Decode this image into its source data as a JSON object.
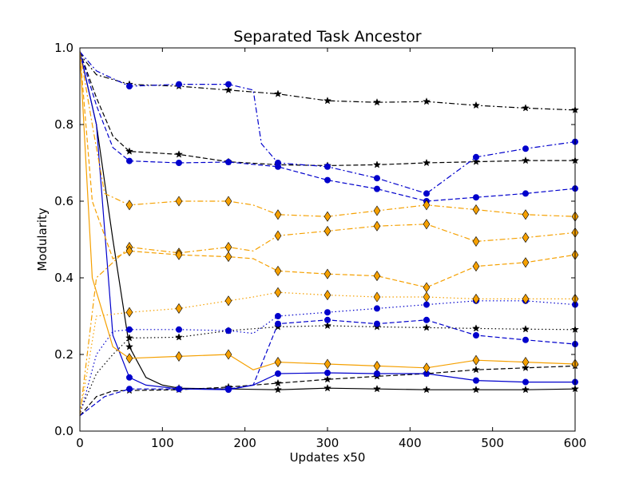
{
  "chart_data": {
    "type": "line",
    "title": "Separated Task Ancestor",
    "xlabel": "Updates x50",
    "ylabel": "Modularity",
    "xlim": [
      0,
      600
    ],
    "ylim": [
      0.0,
      1.0
    ],
    "x_ticks": [
      0,
      100,
      200,
      300,
      400,
      500,
      600
    ],
    "y_ticks": [
      0.0,
      0.2,
      0.4,
      0.6,
      0.8,
      1.0
    ],
    "x_tick_labels": [
      "0",
      "100",
      "200",
      "300",
      "400",
      "500",
      "600"
    ],
    "y_tick_labels": [
      "0.0",
      "0.2",
      "0.4",
      "0.6",
      "0.8",
      "1.0"
    ],
    "grid": false,
    "colors": {
      "black": "#000000",
      "blue": "#0000cc",
      "orange": "#f5a000"
    },
    "series": [
      {
        "color": "black",
        "style": "dashdot",
        "marker": "star",
        "points": [
          [
            0,
            0.99
          ],
          [
            5,
            0.97
          ],
          [
            20,
            0.93
          ],
          [
            60,
            0.905
          ],
          [
            120,
            0.9
          ],
          [
            180,
            0.89
          ],
          [
            240,
            0.88
          ],
          [
            300,
            0.862
          ],
          [
            360,
            0.858
          ],
          [
            420,
            0.86
          ],
          [
            480,
            0.85
          ],
          [
            540,
            0.843
          ],
          [
            600,
            0.838
          ]
        ]
      },
      {
        "color": "black",
        "style": "dashed",
        "marker": "star",
        "points": [
          [
            0,
            0.99
          ],
          [
            20,
            0.87
          ],
          [
            40,
            0.77
          ],
          [
            60,
            0.73
          ],
          [
            120,
            0.722
          ],
          [
            180,
            0.703
          ],
          [
            240,
            0.695
          ],
          [
            300,
            0.693
          ],
          [
            360,
            0.695
          ],
          [
            420,
            0.7
          ],
          [
            480,
            0.703
          ],
          [
            540,
            0.706
          ],
          [
            600,
            0.706
          ]
        ]
      },
      {
        "color": "black",
        "style": "dotted",
        "marker": "star",
        "points": [
          [
            0,
            0.05
          ],
          [
            20,
            0.15
          ],
          [
            40,
            0.2
          ],
          [
            60,
            0.243
          ],
          [
            120,
            0.245
          ],
          [
            180,
            0.262
          ],
          [
            240,
            0.272
          ],
          [
            300,
            0.275
          ],
          [
            360,
            0.272
          ],
          [
            420,
            0.27
          ],
          [
            480,
            0.268
          ],
          [
            540,
            0.266
          ],
          [
            600,
            0.265
          ]
        ]
      },
      {
        "color": "black",
        "style": "dashed",
        "marker": "star",
        "points": [
          [
            0,
            0.04
          ],
          [
            20,
            0.09
          ],
          [
            40,
            0.105
          ],
          [
            60,
            0.106
          ],
          [
            120,
            0.108
          ],
          [
            180,
            0.115
          ],
          [
            240,
            0.125
          ],
          [
            300,
            0.135
          ],
          [
            360,
            0.143
          ],
          [
            420,
            0.15
          ],
          [
            480,
            0.16
          ],
          [
            540,
            0.165
          ],
          [
            600,
            0.17
          ]
        ]
      },
      {
        "color": "black",
        "style": "solid",
        "marker": "star",
        "points": [
          [
            0,
            0.99
          ],
          [
            20,
            0.8
          ],
          [
            40,
            0.5
          ],
          [
            60,
            0.22
          ],
          [
            80,
            0.14
          ],
          [
            100,
            0.12
          ],
          [
            120,
            0.112
          ],
          [
            180,
            0.11
          ],
          [
            240,
            0.108
          ],
          [
            300,
            0.112
          ],
          [
            360,
            0.11
          ],
          [
            420,
            0.108
          ],
          [
            480,
            0.108
          ],
          [
            540,
            0.108
          ],
          [
            600,
            0.11
          ]
        ]
      },
      {
        "color": "blue",
        "style": "dashdot",
        "marker": "circle",
        "points": [
          [
            0,
            0.99
          ],
          [
            20,
            0.94
          ],
          [
            60,
            0.9
          ],
          [
            120,
            0.905
          ],
          [
            180,
            0.905
          ],
          [
            210,
            0.89
          ],
          [
            220,
            0.75
          ],
          [
            240,
            0.7
          ],
          [
            300,
            0.69
          ],
          [
            360,
            0.66
          ],
          [
            420,
            0.62
          ],
          [
            480,
            0.715
          ],
          [
            540,
            0.737
          ],
          [
            600,
            0.755
          ]
        ]
      },
      {
        "color": "blue",
        "style": "dashed",
        "marker": "circle",
        "points": [
          [
            0,
            0.99
          ],
          [
            20,
            0.85
          ],
          [
            40,
            0.74
          ],
          [
            60,
            0.705
          ],
          [
            120,
            0.7
          ],
          [
            180,
            0.702
          ],
          [
            240,
            0.69
          ],
          [
            300,
            0.655
          ],
          [
            360,
            0.632
          ],
          [
            420,
            0.6
          ],
          [
            480,
            0.61
          ],
          [
            540,
            0.62
          ],
          [
            600,
            0.633
          ]
        ]
      },
      {
        "color": "blue",
        "style": "dotted",
        "marker": "circle",
        "points": [
          [
            0,
            0.04
          ],
          [
            20,
            0.2
          ],
          [
            40,
            0.26
          ],
          [
            60,
            0.265
          ],
          [
            120,
            0.265
          ],
          [
            180,
            0.262
          ],
          [
            210,
            0.255
          ],
          [
            240,
            0.3
          ],
          [
            300,
            0.31
          ],
          [
            360,
            0.32
          ],
          [
            420,
            0.33
          ],
          [
            480,
            0.34
          ],
          [
            540,
            0.34
          ],
          [
            600,
            0.33
          ]
        ]
      },
      {
        "color": "blue",
        "style": "dashed",
        "marker": "circle",
        "points": [
          [
            0,
            0.04
          ],
          [
            30,
            0.09
          ],
          [
            60,
            0.11
          ],
          [
            120,
            0.11
          ],
          [
            180,
            0.11
          ],
          [
            210,
            0.12
          ],
          [
            240,
            0.28
          ],
          [
            300,
            0.29
          ],
          [
            360,
            0.28
          ],
          [
            420,
            0.29
          ],
          [
            480,
            0.25
          ],
          [
            540,
            0.238
          ],
          [
            600,
            0.227
          ]
        ]
      },
      {
        "color": "blue",
        "style": "solid",
        "marker": "circle",
        "points": [
          [
            0,
            0.99
          ],
          [
            20,
            0.8
          ],
          [
            40,
            0.25
          ],
          [
            60,
            0.14
          ],
          [
            80,
            0.12
          ],
          [
            120,
            0.11
          ],
          [
            180,
            0.108
          ],
          [
            210,
            0.12
          ],
          [
            240,
            0.15
          ],
          [
            300,
            0.152
          ],
          [
            360,
            0.15
          ],
          [
            420,
            0.15
          ],
          [
            480,
            0.132
          ],
          [
            540,
            0.128
          ],
          [
            600,
            0.128
          ]
        ]
      },
      {
        "color": "orange",
        "style": "dashdot",
        "marker": "diamond",
        "points": [
          [
            0,
            0.99
          ],
          [
            15,
            0.8
          ],
          [
            30,
            0.62
          ],
          [
            60,
            0.59
          ],
          [
            120,
            0.6
          ],
          [
            180,
            0.6
          ],
          [
            210,
            0.59
          ],
          [
            240,
            0.565
          ],
          [
            300,
            0.56
          ],
          [
            360,
            0.575
          ],
          [
            420,
            0.59
          ],
          [
            480,
            0.578
          ],
          [
            540,
            0.565
          ],
          [
            600,
            0.56
          ]
        ]
      },
      {
        "color": "orange",
        "style": "dashdot",
        "marker": "diamond",
        "points": [
          [
            0,
            0.04
          ],
          [
            20,
            0.4
          ],
          [
            60,
            0.48
          ],
          [
            120,
            0.465
          ],
          [
            180,
            0.48
          ],
          [
            210,
            0.47
          ],
          [
            240,
            0.51
          ],
          [
            300,
            0.522
          ],
          [
            360,
            0.535
          ],
          [
            420,
            0.54
          ],
          [
            480,
            0.495
          ],
          [
            540,
            0.505
          ],
          [
            600,
            0.518
          ]
        ]
      },
      {
        "color": "orange",
        "style": "dashed",
        "marker": "diamond",
        "points": [
          [
            0,
            0.99
          ],
          [
            15,
            0.6
          ],
          [
            40,
            0.45
          ],
          [
            60,
            0.47
          ],
          [
            120,
            0.46
          ],
          [
            180,
            0.455
          ],
          [
            210,
            0.45
          ],
          [
            240,
            0.418
          ],
          [
            300,
            0.41
          ],
          [
            360,
            0.405
          ],
          [
            420,
            0.375
          ],
          [
            480,
            0.43
          ],
          [
            540,
            0.44
          ],
          [
            600,
            0.46
          ]
        ]
      },
      {
        "color": "orange",
        "style": "dotted",
        "marker": "diamond",
        "points": [
          [
            0,
            0.04
          ],
          [
            20,
            0.3
          ],
          [
            60,
            0.31
          ],
          [
            120,
            0.32
          ],
          [
            180,
            0.34
          ],
          [
            210,
            0.35
          ],
          [
            240,
            0.362
          ],
          [
            300,
            0.355
          ],
          [
            360,
            0.35
          ],
          [
            420,
            0.35
          ],
          [
            480,
            0.345
          ],
          [
            540,
            0.345
          ],
          [
            600,
            0.345
          ]
        ]
      },
      {
        "color": "orange",
        "style": "solid",
        "marker": "diamond",
        "points": [
          [
            0,
            0.99
          ],
          [
            15,
            0.4
          ],
          [
            40,
            0.22
          ],
          [
            60,
            0.19
          ],
          [
            120,
            0.195
          ],
          [
            180,
            0.2
          ],
          [
            210,
            0.16
          ],
          [
            240,
            0.18
          ],
          [
            300,
            0.175
          ],
          [
            360,
            0.17
          ],
          [
            420,
            0.165
          ],
          [
            480,
            0.185
          ],
          [
            540,
            0.18
          ],
          [
            600,
            0.175
          ]
        ]
      }
    ]
  }
}
